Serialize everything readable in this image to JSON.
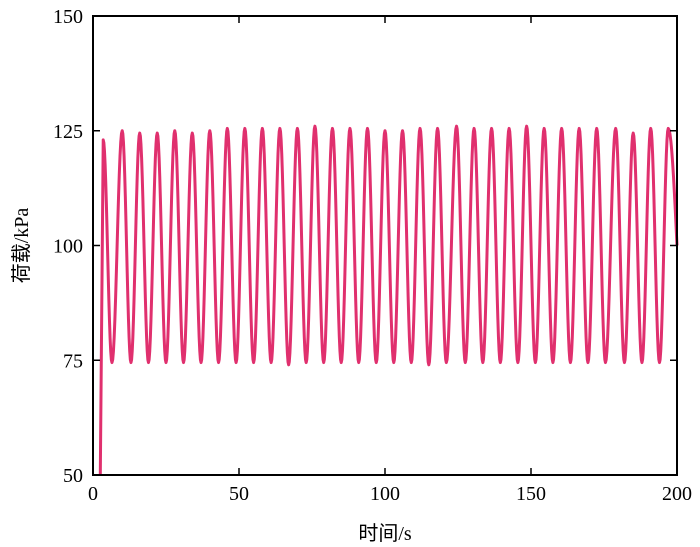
{
  "chart_data": {
    "type": "line",
    "title": "",
    "xlabel": "时间/s",
    "ylabel": "荷载/kPa",
    "xlim": [
      0,
      200
    ],
    "ylim": [
      50,
      150
    ],
    "xticks": [
      0,
      50,
      100,
      150,
      200
    ],
    "yticks": [
      50,
      75,
      100,
      125,
      150
    ],
    "grid": false,
    "series": [
      {
        "color": "#e0306e",
        "signal": {
          "kind": "cyclic-load",
          "start_t": 2.5,
          "start_value": 50,
          "peak_first": 123,
          "period_s": 6.06,
          "mean": 100,
          "amplitude": 25.5,
          "t_end": 200
        },
        "peaks": [
          {
            "t": 3.5,
            "y": 123
          },
          {
            "t": 10.0,
            "y": 125
          },
          {
            "t": 16.0,
            "y": 124.5
          },
          {
            "t": 22.0,
            "y": 124.5
          },
          {
            "t": 28.0,
            "y": 125
          },
          {
            "t": 34.0,
            "y": 124.5
          },
          {
            "t": 40.0,
            "y": 125
          },
          {
            "t": 46.0,
            "y": 125.5
          },
          {
            "t": 52.0,
            "y": 125.5
          },
          {
            "t": 58.0,
            "y": 125.5
          },
          {
            "t": 64.0,
            "y": 125.5
          },
          {
            "t": 70.0,
            "y": 125.5
          },
          {
            "t": 76.0,
            "y": 126
          },
          {
            "t": 82.0,
            "y": 125.5
          },
          {
            "t": 88.0,
            "y": 125.5
          },
          {
            "t": 94.0,
            "y": 125.5
          },
          {
            "t": 100.0,
            "y": 125
          },
          {
            "t": 106.0,
            "y": 125
          },
          {
            "t": 112.0,
            "y": 125.5
          },
          {
            "t": 118.0,
            "y": 125.5
          },
          {
            "t": 124.5,
            "y": 126
          },
          {
            "t": 130.5,
            "y": 125.5
          },
          {
            "t": 136.5,
            "y": 125.5
          },
          {
            "t": 142.5,
            "y": 125.5
          },
          {
            "t": 148.5,
            "y": 126
          },
          {
            "t": 154.5,
            "y": 125.5
          },
          {
            "t": 160.5,
            "y": 125.5
          },
          {
            "t": 166.5,
            "y": 125.5
          },
          {
            "t": 172.5,
            "y": 125.5
          },
          {
            "t": 179.0,
            "y": 125.5
          },
          {
            "t": 185.0,
            "y": 124.5
          },
          {
            "t": 191.0,
            "y": 125.5
          },
          {
            "t": 197.0,
            "y": 125.5
          }
        ],
        "troughs": [
          {
            "t": 6.5,
            "y": 74.5
          },
          {
            "t": 13.0,
            "y": 74.5
          },
          {
            "t": 19.0,
            "y": 74.5
          },
          {
            "t": 25.0,
            "y": 74.5
          },
          {
            "t": 31.0,
            "y": 74.5
          },
          {
            "t": 37.0,
            "y": 74.5
          },
          {
            "t": 43.0,
            "y": 74.5
          },
          {
            "t": 49.0,
            "y": 74.5
          },
          {
            "t": 55.0,
            "y": 74.5
          },
          {
            "t": 61.0,
            "y": 74.5
          },
          {
            "t": 67.0,
            "y": 74.0
          },
          {
            "t": 73.0,
            "y": 74.5
          },
          {
            "t": 79.0,
            "y": 74.5
          },
          {
            "t": 85.0,
            "y": 74.5
          },
          {
            "t": 91.0,
            "y": 74.5
          },
          {
            "t": 97.0,
            "y": 74.5
          },
          {
            "t": 103.0,
            "y": 74.5
          },
          {
            "t": 109.0,
            "y": 74.5
          },
          {
            "t": 115.0,
            "y": 74.0
          },
          {
            "t": 121.0,
            "y": 74.5
          },
          {
            "t": 127.5,
            "y": 74.5
          },
          {
            "t": 133.5,
            "y": 74.5
          },
          {
            "t": 139.5,
            "y": 74.5
          },
          {
            "t": 145.5,
            "y": 74.5
          },
          {
            "t": 151.5,
            "y": 74.5
          },
          {
            "t": 157.5,
            "y": 74.5
          },
          {
            "t": 163.5,
            "y": 74.5
          },
          {
            "t": 169.5,
            "y": 74.5
          },
          {
            "t": 175.5,
            "y": 74.5
          },
          {
            "t": 182.0,
            "y": 74.5
          },
          {
            "t": 188.0,
            "y": 74.5
          },
          {
            "t": 194.0,
            "y": 74.5
          }
        ]
      }
    ]
  }
}
